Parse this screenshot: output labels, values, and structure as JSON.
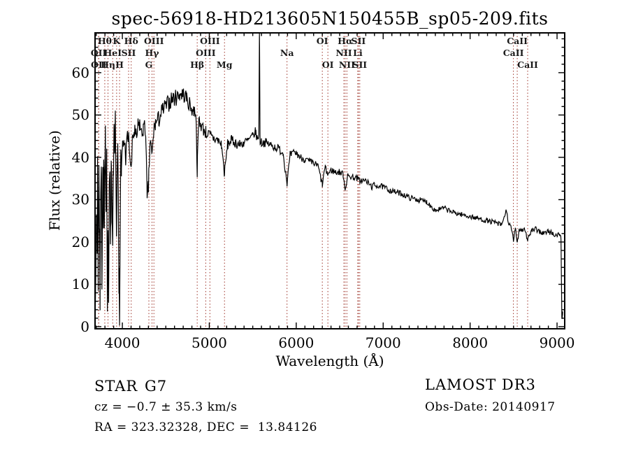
{
  "header": {
    "title": "spec-56918-HD213605N150455B_sp05-209.fits"
  },
  "annotations": {
    "object_class": "STAR",
    "subclass": "G7",
    "cz_line": "cz = −0.7 ± 35.3 km/s",
    "radec_line": "RA = 323.32328, DEC =  13.84126",
    "survey": "LAMOST DR3",
    "obs_date_line": "Obs-Date: 20140917"
  },
  "chart_data": {
    "type": "line",
    "title": "spec-56918-HD213605N150455B_sp05-209.fits",
    "xlabel": "Wavelength (Å)",
    "ylabel": "Flux (relative)",
    "xlim": [
      3686,
      9088
    ],
    "ylim": [
      -0.5,
      69.4
    ],
    "x_ticks": [
      4000,
      5000,
      6000,
      7000,
      8000,
      9000
    ],
    "y_ticks": [
      0,
      10,
      20,
      30,
      40,
      50,
      60
    ],
    "x_minor_step": 100,
    "y_minor_step": 2,
    "grid": false,
    "trace_color": "#000000",
    "marker_line_color": "#9e342a",
    "spectral_lines": [
      {
        "name": "Hθ",
        "wavelength": 3798,
        "row": 1
      },
      {
        "name": "K",
        "wavelength": 3934,
        "row": 1
      },
      {
        "name": "Hδ",
        "wavelength": 4102,
        "row": 1
      },
      {
        "name": "OIII",
        "wavelength": 4363,
        "row": 1
      },
      {
        "name": "OIII",
        "wavelength": 5007,
        "row": 1
      },
      {
        "name": "OI",
        "wavelength": 6300,
        "row": 1
      },
      {
        "name": "Hα",
        "wavelength": 6563,
        "row": 1
      },
      {
        "name": "SII",
        "wavelength": 6716,
        "row": 1
      },
      {
        "name": "CaII",
        "wavelength": 8542,
        "row": 1
      },
      {
        "name": "OII",
        "wavelength": 3727,
        "row": 2
      },
      {
        "name": "HeI",
        "wavelength": 3889,
        "row": 2
      },
      {
        "name": "SII",
        "wavelength": 4072,
        "row": 2
      },
      {
        "name": "Hγ",
        "wavelength": 4341,
        "row": 2
      },
      {
        "name": "OIII",
        "wavelength": 4959,
        "row": 2
      },
      {
        "name": "Na",
        "wavelength": 5894,
        "row": 2
      },
      {
        "name": "NII",
        "wavelength": 6548,
        "row": 2
      },
      {
        "name": "Li",
        "wavelength": 6708,
        "row": 2
      },
      {
        "name": "CaII",
        "wavelength": 8498,
        "row": 2
      },
      {
        "name": "OII",
        "wavelength": 3729,
        "row": 3
      },
      {
        "name": "Hη",
        "wavelength": 3835,
        "row": 3
      },
      {
        "name": "H",
        "wavelength": 3968,
        "row": 3
      },
      {
        "name": "G",
        "wavelength": 4305,
        "row": 3
      },
      {
        "name": "Hβ",
        "wavelength": 4861,
        "row": 3
      },
      {
        "name": "Mg",
        "wavelength": 5175,
        "row": 3
      },
      {
        "name": "OI",
        "wavelength": 6364,
        "row": 3
      },
      {
        "name": "NII",
        "wavelength": 6583,
        "row": 3
      },
      {
        "name": "SII",
        "wavelength": 6731,
        "row": 3
      },
      {
        "name": "CaII",
        "wavelength": 8662,
        "row": 3
      }
    ],
    "flux_anchors": [
      [
        3688,
        24
      ],
      [
        3695,
        10
      ],
      [
        3703,
        30
      ],
      [
        3710,
        22
      ],
      [
        3715,
        40
      ],
      [
        3722,
        8
      ],
      [
        3730,
        33
      ],
      [
        3738,
        26
      ],
      [
        3745,
        12
      ],
      [
        3752,
        30
      ],
      [
        3760,
        38
      ],
      [
        3768,
        20
      ],
      [
        3775,
        35
      ],
      [
        3782,
        28
      ],
      [
        3790,
        40
      ],
      [
        3797,
        30
      ],
      [
        3805,
        42
      ],
      [
        3812,
        22
      ],
      [
        3820,
        36
      ],
      [
        3828,
        10
      ],
      [
        3835,
        25
      ],
      [
        3842,
        5
      ],
      [
        3850,
        30
      ],
      [
        3858,
        36
      ],
      [
        3865,
        18
      ],
      [
        3872,
        38
      ],
      [
        3880,
        25
      ],
      [
        3889,
        15
      ],
      [
        3897,
        36
      ],
      [
        3905,
        44
      ],
      [
        3912,
        38
      ],
      [
        3920,
        46
      ],
      [
        3928,
        30
      ],
      [
        3933,
        17
      ],
      [
        3940,
        36
      ],
      [
        3948,
        44
      ],
      [
        3955,
        30
      ],
      [
        3962,
        10
      ],
      [
        3968,
        3
      ],
      [
        3975,
        25
      ],
      [
        3982,
        40
      ],
      [
        3990,
        36
      ],
      [
        4000,
        42
      ],
      [
        4020,
        44
      ],
      [
        4040,
        40
      ],
      [
        4060,
        45
      ],
      [
        4080,
        43
      ],
      [
        4101,
        36
      ],
      [
        4120,
        45
      ],
      [
        4140,
        46
      ],
      [
        4160,
        44
      ],
      [
        4180,
        47
      ],
      [
        4200,
        48
      ],
      [
        4220,
        45
      ],
      [
        4240,
        47
      ],
      [
        4270,
        46
      ],
      [
        4285,
        29
      ],
      [
        4300,
        33
      ],
      [
        4320,
        44
      ],
      [
        4341,
        40
      ],
      [
        4360,
        46
      ],
      [
        4380,
        48
      ],
      [
        4420,
        49
      ],
      [
        4460,
        51
      ],
      [
        4500,
        52
      ],
      [
        4540,
        53
      ],
      [
        4580,
        54
      ],
      [
        4620,
        54
      ],
      [
        4660,
        55
      ],
      [
        4700,
        55
      ],
      [
        4740,
        54
      ],
      [
        4780,
        52
      ],
      [
        4820,
        51
      ],
      [
        4845,
        51
      ],
      [
        4861,
        37
      ],
      [
        4880,
        49
      ],
      [
        4920,
        47
      ],
      [
        4960,
        46
      ],
      [
        5007,
        45
      ],
      [
        5050,
        44.5
      ],
      [
        5100,
        44
      ],
      [
        5140,
        43
      ],
      [
        5175,
        36
      ],
      [
        5210,
        43
      ],
      [
        5250,
        44
      ],
      [
        5300,
        43.5
      ],
      [
        5350,
        43
      ],
      [
        5400,
        43.5
      ],
      [
        5450,
        44
      ],
      [
        5500,
        45
      ],
      [
        5530,
        46
      ],
      [
        5560,
        44
      ],
      [
        5570,
        46
      ],
      [
        5577,
        69.5
      ],
      [
        5584,
        44
      ],
      [
        5600,
        43.5
      ],
      [
        5650,
        43.5
      ],
      [
        5700,
        43
      ],
      [
        5750,
        42.5
      ],
      [
        5800,
        42
      ],
      [
        5850,
        41
      ],
      [
        5894,
        34
      ],
      [
        5930,
        40.5
      ],
      [
        5970,
        41
      ],
      [
        6000,
        41
      ],
      [
        6050,
        40
      ],
      [
        6100,
        39.5
      ],
      [
        6150,
        39
      ],
      [
        6200,
        38.5
      ],
      [
        6250,
        38
      ],
      [
        6300,
        33.5
      ],
      [
        6330,
        37.5
      ],
      [
        6364,
        36
      ],
      [
        6400,
        37
      ],
      [
        6450,
        36.5
      ],
      [
        6500,
        36.5
      ],
      [
        6540,
        36
      ],
      [
        6563,
        32.5
      ],
      [
        6590,
        35.5
      ],
      [
        6650,
        35.5
      ],
      [
        6700,
        35
      ],
      [
        6730,
        34.5
      ],
      [
        6800,
        34.5
      ],
      [
        6870,
        33
      ],
      [
        6900,
        33.5
      ],
      [
        7000,
        33
      ],
      [
        7100,
        32
      ],
      [
        7200,
        31.5
      ],
      [
        7300,
        30.5
      ],
      [
        7400,
        30
      ],
      [
        7500,
        29.5
      ],
      [
        7600,
        27.5
      ],
      [
        7700,
        28
      ],
      [
        7800,
        27
      ],
      [
        7900,
        26.5
      ],
      [
        8000,
        26
      ],
      [
        8100,
        25.5
      ],
      [
        8200,
        25
      ],
      [
        8300,
        24.5
      ],
      [
        8360,
        24
      ],
      [
        8420,
        27.5
      ],
      [
        8445,
        24
      ],
      [
        8470,
        23.5
      ],
      [
        8498,
        20.5
      ],
      [
        8520,
        23
      ],
      [
        8542,
        20
      ],
      [
        8565,
        23
      ],
      [
        8600,
        23
      ],
      [
        8630,
        23
      ],
      [
        8662,
        20.5
      ],
      [
        8700,
        22.5
      ],
      [
        8750,
        23
      ],
      [
        8800,
        22.5
      ],
      [
        8850,
        22
      ],
      [
        8900,
        22.5
      ],
      [
        8950,
        22
      ],
      [
        9000,
        21.5
      ],
      [
        9030,
        22
      ],
      [
        9045,
        21
      ],
      [
        9055,
        1.5
      ],
      [
        9065,
        3
      ]
    ],
    "noise_profile": [
      [
        3690,
        7
      ],
      [
        3950,
        6
      ],
      [
        4000,
        2.8
      ],
      [
        4400,
        2.2
      ],
      [
        4900,
        1.8
      ],
      [
        5100,
        1.4
      ],
      [
        5600,
        1.1
      ],
      [
        6000,
        0.9
      ],
      [
        6500,
        0.8
      ],
      [
        7000,
        0.7
      ],
      [
        8000,
        0.6
      ],
      [
        9000,
        0.7
      ]
    ],
    "blue_plunges": {
      "below_wavelength": 3990,
      "probability": 0.09,
      "max_depth": 15
    },
    "noise_seed": 7,
    "sample_step": 7
  }
}
